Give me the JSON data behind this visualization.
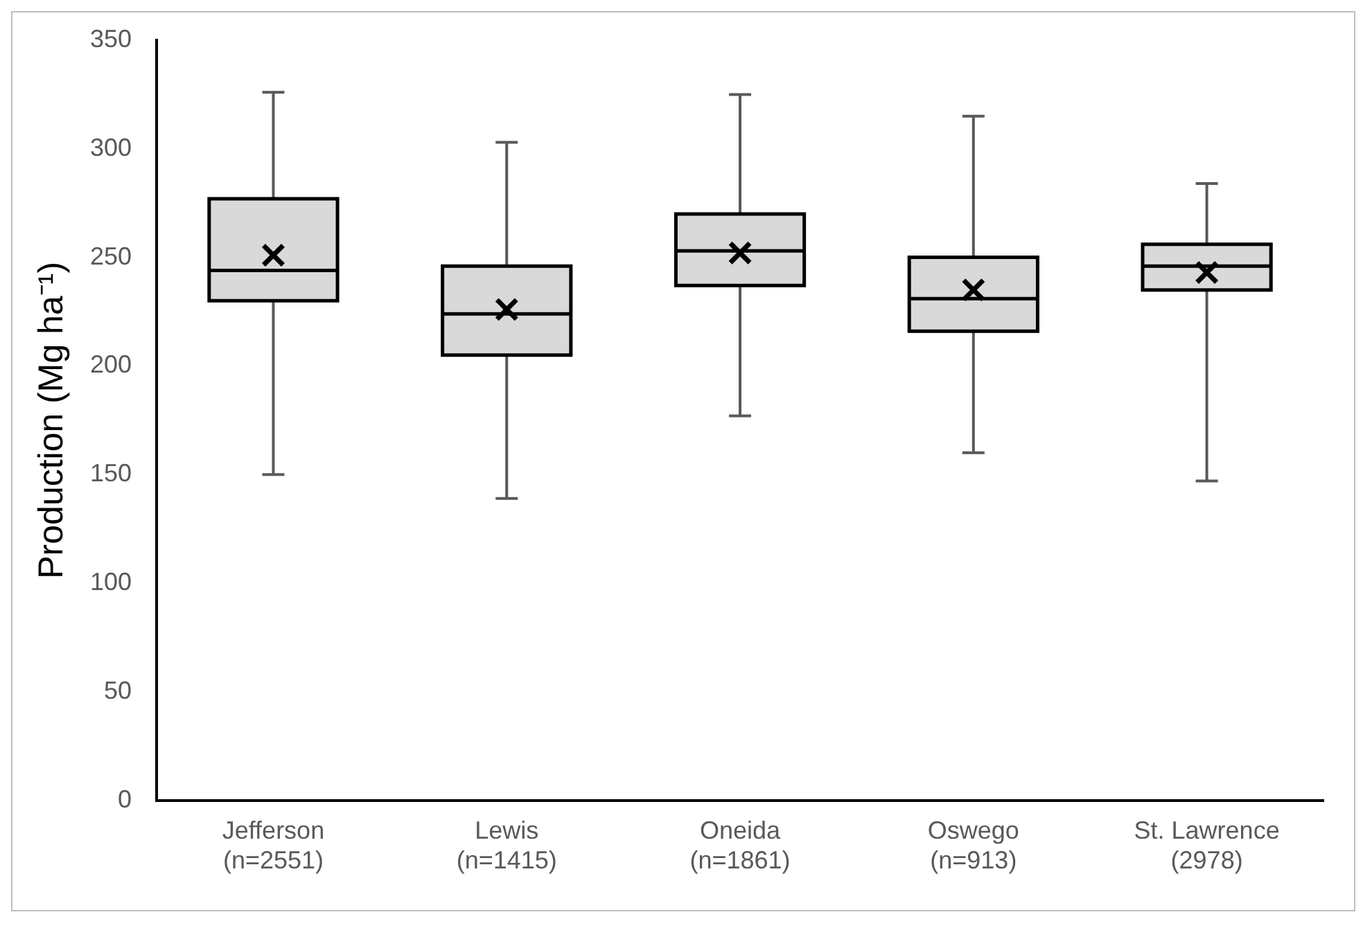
{
  "chart_data": {
    "type": "box",
    "ylabel": "Production (Mg ha⁻¹)",
    "categories": [
      "Jefferson\n(n=2551)",
      "Lewis\n(n=1415)",
      "Oneida\n(n=1861)",
      "Oswego\n(n=913)",
      "St. Lawrence\n(2978)"
    ],
    "boxes": [
      {
        "low": 150,
        "q1": 230,
        "median": 244,
        "q3": 277,
        "high": 326,
        "mean": 251
      },
      {
        "low": 139,
        "q1": 205,
        "median": 224,
        "q3": 246,
        "high": 303,
        "mean": 226
      },
      {
        "low": 177,
        "q1": 237,
        "median": 253,
        "q3": 270,
        "high": 325,
        "mean": 252
      },
      {
        "low": 160,
        "q1": 216,
        "median": 231,
        "q3": 250,
        "high": 315,
        "mean": 235
      },
      {
        "low": 147,
        "q1": 235,
        "median": 246,
        "q3": 256,
        "high": 284,
        "mean": 243
      }
    ],
    "color": "#d9d9d9",
    "ylim": [
      0,
      350
    ],
    "yticks": [
      0,
      50,
      100,
      150,
      200,
      250,
      300,
      350
    ],
    "grid": false,
    "legend": false
  }
}
